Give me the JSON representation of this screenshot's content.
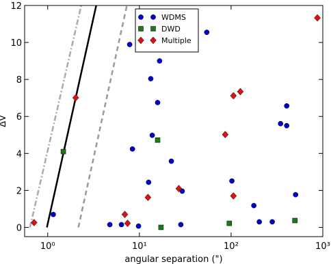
{
  "chart_data": {
    "type": "scatter",
    "xlabel": "angular separation (\")",
    "ylabel": "ΔV",
    "xscale": "log",
    "xlim": [
      0.56,
      1000
    ],
    "ylim": [
      -0.5,
      12
    ],
    "xticks": [
      {
        "value": 1,
        "label": "10⁰"
      },
      {
        "value": 10,
        "label": "10¹"
      },
      {
        "value": 100,
        "label": "10²"
      },
      {
        "value": 1000,
        "label": "10³"
      }
    ],
    "yticks": [
      0,
      2,
      4,
      6,
      8,
      10,
      12
    ],
    "grid": false,
    "legend": "upper center",
    "series": [
      {
        "name": "WDMS",
        "color": "#0000cc",
        "marker": "circle",
        "x": [
          1.15,
          7.83,
          16.6,
          13.3,
          15.8,
          13.8,
          8.4,
          22.3,
          12.6,
          29.3,
          54.3,
          102,
          177,
          203,
          281,
          404,
          346,
          404,
          505,
          4.76,
          6.37,
          9.78,
          28.3
        ],
        "y": [
          0.7,
          9.89,
          9.0,
          8.04,
          6.75,
          4.98,
          4.24,
          3.58,
          2.44,
          1.96,
          10.55,
          2.51,
          1.18,
          0.3,
          0.3,
          6.57,
          5.61,
          5.5,
          1.77,
          0.15,
          0.15,
          0.07,
          0.15
        ]
      },
      {
        "name": "DWD",
        "color": "#1a7a1a",
        "marker": "square",
        "x": [
          1.48,
          15.8,
          17.2,
          95.6,
          496
        ],
        "y": [
          4.1,
          4.72,
          0.0,
          0.22,
          0.37
        ]
      },
      {
        "name": "Multiple",
        "color": "#dd1111",
        "marker": "diamond",
        "x": [
          0.71,
          2.02,
          6.94,
          7.43,
          12.4,
          26.9,
          126,
          106,
          86.3,
          106,
          873
        ],
        "y": [
          0.26,
          7.01,
          0.7,
          0.22,
          1.62,
          2.1,
          7.34,
          7.12,
          5.02,
          1.7,
          11.33
        ]
      }
    ],
    "lines": [
      {
        "x": [
          0.64,
          2.32
        ],
        "y": [
          0,
          12
        ],
        "color": "#aaaaaa",
        "style": "dashdot"
      },
      {
        "x": [
          0.98,
          3.38
        ],
        "y": [
          0,
          12
        ],
        "color": "#000000",
        "style": "solid"
      },
      {
        "x": [
          2.16,
          7.3
        ],
        "y": [
          0,
          12
        ],
        "color": "#999999",
        "style": "dashed"
      }
    ]
  }
}
